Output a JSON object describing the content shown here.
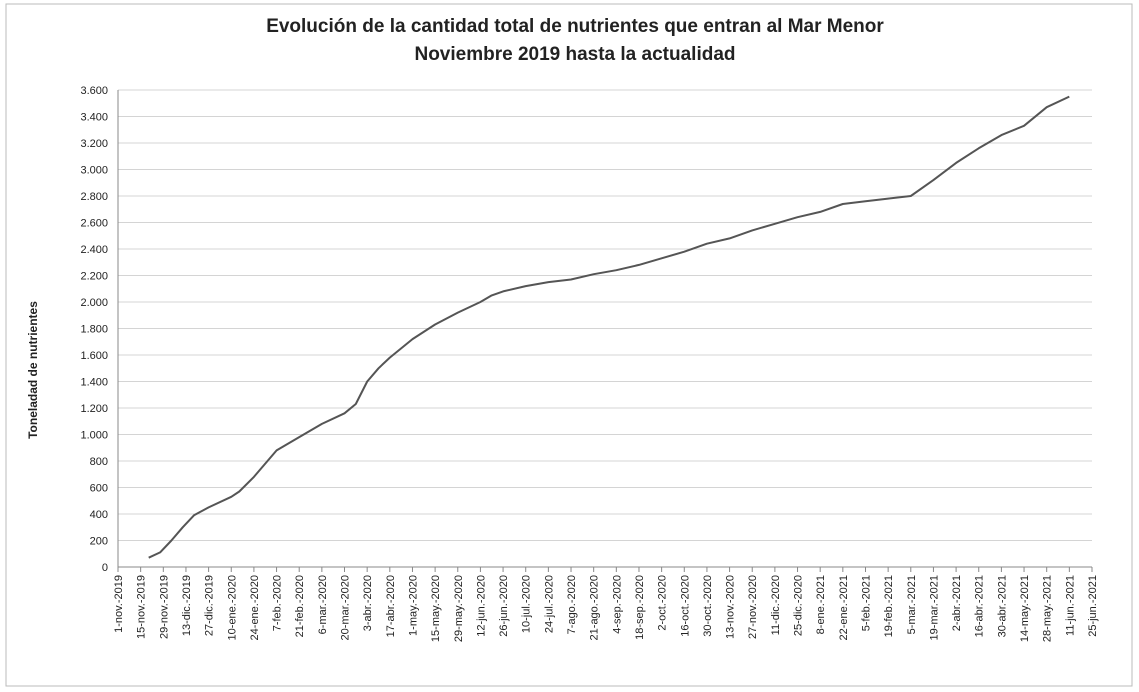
{
  "chart_data": {
    "type": "line",
    "title": "Evolución de la cantidad total de nutrientes que entran al Mar Menor",
    "subtitle": "Noviembre 2019 hasta la actualidad",
    "y_label": "Toneladad de nutrientes",
    "grid": true,
    "xlim": [
      "2019-11-01",
      "2021-06-25"
    ],
    "ylim": [
      0,
      3600
    ],
    "yticks": [
      0,
      200,
      400,
      600,
      800,
      {
        "value": 1000,
        "label": "1.000"
      },
      {
        "value": 1200,
        "label": "1.200"
      },
      {
        "value": 1400,
        "label": "1.400"
      },
      {
        "value": 1600,
        "label": "1.600"
      },
      {
        "value": 1800,
        "label": "1.800"
      },
      {
        "value": 2000,
        "label": "2.000"
      },
      {
        "value": 2200,
        "label": "2.200"
      },
      {
        "value": 2400,
        "label": "2.400"
      },
      {
        "value": 2600,
        "label": "2.600"
      },
      {
        "value": 2800,
        "label": "2.800"
      },
      {
        "value": 3000,
        "label": "3.000"
      },
      {
        "value": 3200,
        "label": "3.200"
      },
      {
        "value": 3400,
        "label": "3.400"
      },
      {
        "value": 3600,
        "label": "3.600"
      }
    ],
    "xticks": [
      {
        "value": "2019-11-01",
        "label": "1-nov.-2019"
      },
      {
        "value": "2019-11-15",
        "label": "15-nov.-2019"
      },
      {
        "value": "2019-11-29",
        "label": "29-nov.-2019"
      },
      {
        "value": "2019-12-13",
        "label": "13-dic.-2019"
      },
      {
        "value": "2019-12-27",
        "label": "27-dic.-2019"
      },
      {
        "value": "2020-01-10",
        "label": "10-ene.-2020"
      },
      {
        "value": "2020-01-24",
        "label": "24-ene.-2020"
      },
      {
        "value": "2020-02-07",
        "label": "7-feb.-2020"
      },
      {
        "value": "2020-02-21",
        "label": "21-feb.-2020"
      },
      {
        "value": "2020-03-06",
        "label": "6-mar.-2020"
      },
      {
        "value": "2020-03-20",
        "label": "20-mar.-2020"
      },
      {
        "value": "2020-04-03",
        "label": "3-abr.-2020"
      },
      {
        "value": "2020-04-17",
        "label": "17-abr.-2020"
      },
      {
        "value": "2020-05-01",
        "label": "1-may.-2020"
      },
      {
        "value": "2020-05-15",
        "label": "15-may.-2020"
      },
      {
        "value": "2020-05-29",
        "label": "29-may.-2020"
      },
      {
        "value": "2020-06-12",
        "label": "12-jun.-2020"
      },
      {
        "value": "2020-06-26",
        "label": "26-jun.-2020"
      },
      {
        "value": "2020-07-10",
        "label": "10-jul.-2020"
      },
      {
        "value": "2020-07-24",
        "label": "24-jul.-2020"
      },
      {
        "value": "2020-08-07",
        "label": "7-ago.-2020"
      },
      {
        "value": "2020-08-21",
        "label": "21-ago.-2020"
      },
      {
        "value": "2020-09-04",
        "label": "4-sep.-2020"
      },
      {
        "value": "2020-09-18",
        "label": "18-sep.-2020"
      },
      {
        "value": "2020-10-02",
        "label": "2-oct.-2020"
      },
      {
        "value": "2020-10-16",
        "label": "16-oct.-2020"
      },
      {
        "value": "2020-10-30",
        "label": "30-oct.-2020"
      },
      {
        "value": "2020-11-13",
        "label": "13-nov.-2020"
      },
      {
        "value": "2020-11-27",
        "label": "27-nov.-2020"
      },
      {
        "value": "2020-12-11",
        "label": "11-dic.-2020"
      },
      {
        "value": "2020-12-25",
        "label": "25-dic.-2020"
      },
      {
        "value": "2021-01-08",
        "label": "8-ene.-2021"
      },
      {
        "value": "2021-01-22",
        "label": "22-ene.-2021"
      },
      {
        "value": "2021-02-05",
        "label": "5-feb.-2021"
      },
      {
        "value": "2021-02-19",
        "label": "19-feb.-2021"
      },
      {
        "value": "2021-03-05",
        "label": "5-mar.-2021"
      },
      {
        "value": "2021-03-19",
        "label": "19-mar.-2021"
      },
      {
        "value": "2021-04-02",
        "label": "2-abr.-2021"
      },
      {
        "value": "2021-04-16",
        "label": "16-abr.-2021"
      },
      {
        "value": "2021-04-30",
        "label": "30-abr.-2021"
      },
      {
        "value": "2021-05-14",
        "label": "14-may.-2021"
      },
      {
        "value": "2021-05-28",
        "label": "28-may.-2021"
      },
      {
        "value": "2021-06-11",
        "label": "11-jun.-2021"
      },
      {
        "value": "2021-06-25",
        "label": "25-jun.-2021"
      }
    ],
    "x": [
      "2019-11-20",
      "2019-11-27",
      "2019-12-04",
      "2019-12-11",
      "2019-12-18",
      "2019-12-27",
      "2020-01-10",
      "2020-01-15",
      "2020-01-24",
      "2020-02-07",
      "2020-02-21",
      "2020-03-06",
      "2020-03-20",
      "2020-03-27",
      "2020-04-03",
      "2020-04-10",
      "2020-04-17",
      "2020-05-01",
      "2020-05-15",
      "2020-05-29",
      "2020-06-12",
      "2020-06-19",
      "2020-06-26",
      "2020-07-10",
      "2020-07-24",
      "2020-08-07",
      "2020-08-21",
      "2020-09-04",
      "2020-09-18",
      "2020-10-02",
      "2020-10-16",
      "2020-10-30",
      "2020-11-13",
      "2020-11-27",
      "2020-12-11",
      "2020-12-25",
      "2021-01-08",
      "2021-01-22",
      "2021-02-05",
      "2021-02-19",
      "2021-03-05",
      "2021-03-19",
      "2021-04-02",
      "2021-04-16",
      "2021-04-30",
      "2021-05-14",
      "2021-05-28",
      "2021-06-11"
    ],
    "series": [
      {
        "color": "#555555",
        "values": [
          70,
          110,
          200,
          300,
          390,
          450,
          530,
          570,
          680,
          880,
          980,
          1080,
          1160,
          1230,
          1400,
          1500,
          1580,
          1720,
          1830,
          1920,
          2000,
          2050,
          2080,
          2120,
          2150,
          2170,
          2210,
          2240,
          2280,
          2330,
          2380,
          2440,
          2480,
          2540,
          2590,
          2640,
          2680,
          2740,
          2760,
          2780,
          2800,
          2920,
          3050,
          3160,
          3260,
          3330,
          3470,
          3550
        ]
      }
    ]
  }
}
